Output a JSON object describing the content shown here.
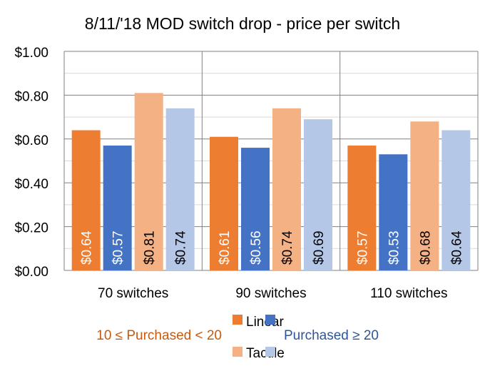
{
  "chart_data": {
    "type": "bar",
    "title": "8/11/'18 MOD switch drop - price per switch",
    "xlabel": "",
    "ylabel": "",
    "ylim": [
      0,
      1.0
    ],
    "yticks": [
      0,
      0.2,
      0.4,
      0.6,
      0.8,
      1.0
    ],
    "ytick_labels": [
      "$0.00",
      "$0.20",
      "$0.40",
      "$0.60",
      "$0.80",
      "$1.00"
    ],
    "grid": true,
    "categories": [
      "70 switches",
      "90 switches",
      "110 switches"
    ],
    "series": [
      {
        "name": "Linear, 10 ≤ Purchased < 20",
        "color": "#ED7D31",
        "label_color": "#ffffff",
        "values": [
          0.64,
          0.61,
          0.57
        ],
        "labels": [
          "$0.64",
          "$0.61",
          "$0.57"
        ]
      },
      {
        "name": "Linear, Purchased ≥ 20",
        "color": "#4472C4",
        "label_color": "#ffffff",
        "values": [
          0.57,
          0.56,
          0.53
        ],
        "labels": [
          "$0.57",
          "$0.56",
          "$0.53"
        ]
      },
      {
        "name": "Tactile, 10 ≤ Purchased < 20",
        "color": "#F4B183",
        "label_color": "#000000",
        "values": [
          0.81,
          0.74,
          0.68
        ],
        "labels": [
          "$0.81",
          "$0.74",
          "$0.68"
        ]
      },
      {
        "name": "Tactile, Purchased ≥ 20",
        "color": "#B4C7E7",
        "label_color": "#000000",
        "values": [
          0.74,
          0.69,
          0.64
        ],
        "labels": [
          "$0.74",
          "$0.69",
          "$0.64"
        ]
      }
    ],
    "legend": {
      "placement": "bottom",
      "rows": [
        "Linear",
        "Tactile"
      ],
      "left_caption": "10 ≤ Purchased < 20",
      "right_caption": "Purchased ≥ 20",
      "left_caption_color": "#C55A11",
      "right_caption_color": "#2F5597"
    }
  }
}
